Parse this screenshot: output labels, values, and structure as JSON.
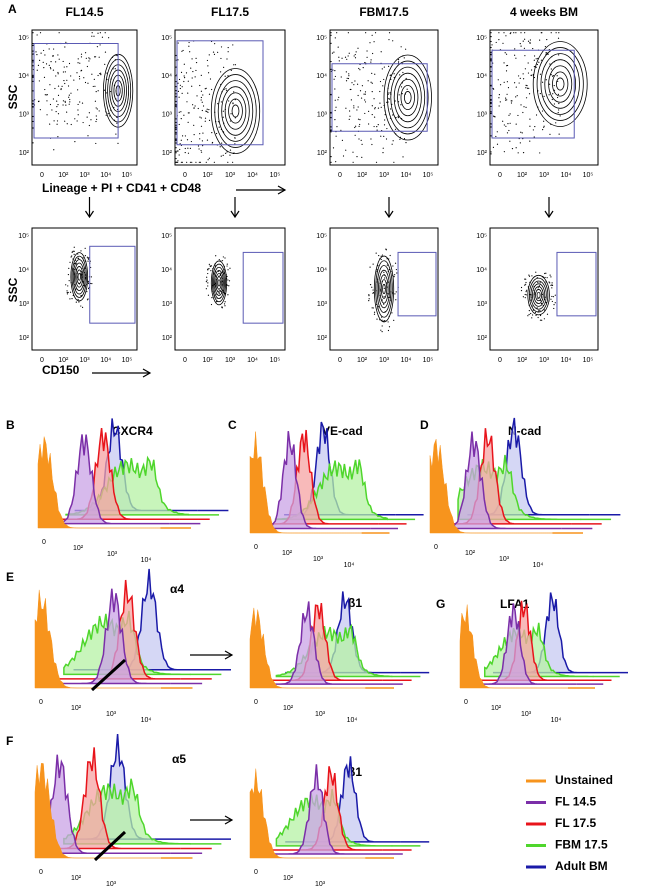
{
  "panel_a": {
    "label": "A",
    "columns": [
      "FL14.5",
      "FL17.5",
      "FBM17.5",
      "4 weeks BM"
    ],
    "y_axis_label": "SSC",
    "y_ticks": [
      "10⁵",
      "10⁴",
      "10³",
      "10²"
    ],
    "x_ticks": [
      "0",
      "10²",
      "10³",
      "10⁴",
      "10⁵"
    ],
    "gate_1_label": "Lineage + PI + CD41 + CD48",
    "gate_2_label": "CD150"
  },
  "histograms": [
    {
      "label": "B",
      "marker": "CXCR4"
    },
    {
      "label": "C",
      "marker": "VE-cad"
    },
    {
      "label": "D",
      "marker": "N-cad"
    },
    {
      "label": "E",
      "marker": "α4"
    },
    {
      "marker": "β1"
    },
    {
      "label": "G",
      "marker": "LFA1"
    },
    {
      "label": "F",
      "marker": "α5"
    },
    {
      "marker": "β1"
    }
  ],
  "histogram_x_ticks": [
    "0",
    "10²",
    "10³",
    "10⁴"
  ],
  "legend": [
    {
      "name": "Unstained",
      "color": "#f7941d"
    },
    {
      "name": "FL 14.5",
      "color": "#7b2fa8"
    },
    {
      "name": "FL 17.5",
      "color": "#e8141b"
    },
    {
      "name": "FBM 17.5",
      "color": "#4fd62c"
    },
    {
      "name": "Adult BM",
      "color": "#1a1aa8"
    }
  ]
}
